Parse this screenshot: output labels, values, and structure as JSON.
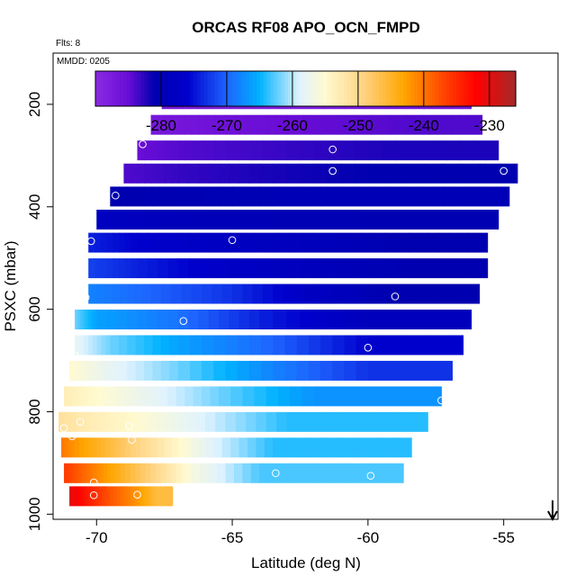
{
  "chart_data": {
    "type": "heatmap",
    "title": "ORCAS RF08 APO_OCN_FMPD",
    "annotation_flts": "Flts: 8",
    "annotation_mmdd": "MMDD: 0205",
    "xlabel": "Latitude (deg N)",
    "ylabel": "PSXC (mbar)",
    "xlim": [
      -71.6,
      -53.0
    ],
    "ylim": [
      1010,
      100
    ],
    "y_reversed": true,
    "grid": false,
    "x_ticks": [
      -70,
      -65,
      -60,
      -55
    ],
    "x_tick_labels": [
      "-70",
      "-65",
      "-60",
      "-55"
    ],
    "y_ticks": [
      200,
      400,
      600,
      800,
      1000
    ],
    "y_tick_labels": [
      "200",
      "400",
      "600",
      "800",
      "1000"
    ],
    "colorbar": {
      "placement": "top-inside",
      "range": [
        -290,
        -226
      ],
      "ticks": [
        -280,
        -270,
        -260,
        -250,
        -240,
        -230
      ],
      "tick_labels": [
        "-280",
        "-270",
        "-260",
        "-250",
        "-240",
        "-230"
      ],
      "colors": [
        "#8a2be2",
        "#6a0dd6",
        "#0000b0",
        "#0000cd",
        "#1e64ff",
        "#00b2ff",
        "#dff2ff",
        "#fffad0",
        "#ffd27f",
        "#ffa500",
        "#ff4500",
        "#ff0000",
        "#a52a2a"
      ],
      "color_stops": [
        -290,
        -285,
        -281,
        -276,
        -270,
        -265,
        -259,
        -255,
        -249,
        -243,
        -237,
        -232,
        -226
      ]
    },
    "rows": [
      {
        "p": 190,
        "x0": -67.6,
        "x1": -56.2,
        "segments": [
          [
            -67.6,
            -287
          ],
          [
            -65.5,
            -288
          ],
          [
            -62,
            -288
          ],
          [
            -59,
            -287
          ]
        ]
      },
      {
        "p": 240,
        "x0": -68.0,
        "x1": -55.8,
        "segments": [
          [
            -68.0,
            -287
          ],
          [
            -66,
            -286
          ],
          [
            -63,
            -285
          ],
          [
            -58,
            -284
          ]
        ]
      },
      {
        "p": 290,
        "x0": -68.5,
        "x1": -55.2,
        "segments": [
          [
            -68.5,
            -285
          ],
          [
            -66.5,
            -284
          ],
          [
            -63,
            -283
          ],
          [
            -59,
            -282
          ]
        ]
      },
      {
        "p": 335,
        "x0": -69.0,
        "x1": -54.5,
        "segments": [
          [
            -69.0,
            -284
          ],
          [
            -67,
            -283
          ],
          [
            -64,
            -282
          ],
          [
            -60,
            -281
          ]
        ]
      },
      {
        "p": 380,
        "x0": -69.5,
        "x1": -54.8,
        "segments": [
          [
            -69.5,
            -281
          ],
          [
            -67,
            -280.5
          ],
          [
            -63,
            -280
          ],
          [
            -58,
            -280
          ]
        ]
      },
      {
        "p": 425,
        "x0": -70.0,
        "x1": -55.2,
        "segments": [
          [
            -70.0,
            -278
          ],
          [
            -68,
            -279
          ],
          [
            -64,
            -280
          ],
          [
            -59,
            -280.5
          ]
        ]
      },
      {
        "p": 470,
        "x0": -70.3,
        "x1": -55.6,
        "segments": [
          [
            -70.3,
            -274
          ],
          [
            -68.5,
            -276
          ],
          [
            -65.5,
            -278
          ],
          [
            -62,
            -279
          ],
          [
            -58.5,
            -281
          ]
        ]
      },
      {
        "p": 520,
        "x0": -70.3,
        "x1": -55.6,
        "segments": [
          [
            -70.3,
            -272
          ],
          [
            -68.5,
            -274
          ],
          [
            -65.5,
            -277
          ],
          [
            -62,
            -279
          ],
          [
            -58,
            -281
          ]
        ]
      },
      {
        "p": 570,
        "x0": -70.3,
        "x1": -55.9,
        "segments": [
          [
            -70.3,
            -268
          ],
          [
            -68,
            -270
          ],
          [
            -65,
            -273
          ],
          [
            -62,
            -278
          ],
          [
            -59,
            -281
          ]
        ]
      },
      {
        "p": 620,
        "x0": -70.8,
        "x1": -56.2,
        "segments": [
          [
            -70.8,
            -262
          ],
          [
            -70,
            -266
          ],
          [
            -67,
            -269
          ],
          [
            -64,
            -274
          ],
          [
            -60,
            -279
          ]
        ]
      },
      {
        "p": 670,
        "x0": -70.8,
        "x1": -56.5,
        "segments": [
          [
            -70.8,
            -258
          ],
          [
            -69.5,
            -262
          ],
          [
            -67,
            -266
          ],
          [
            -63.5,
            -270
          ],
          [
            -60,
            -276
          ]
        ]
      },
      {
        "p": 720,
        "x0": -71.0,
        "x1": -56.9,
        "segments": [
          [
            -71.0,
            -255
          ],
          [
            -69.5,
            -258
          ],
          [
            -67,
            -262
          ],
          [
            -63.5,
            -268
          ],
          [
            -60,
            -273
          ]
        ]
      },
      {
        "p": 770,
        "x0": -71.2,
        "x1": -57.3,
        "segments": [
          [
            -71.2,
            -253
          ],
          [
            -70,
            -255
          ],
          [
            -68,
            -258
          ],
          [
            -65.5,
            -262
          ],
          [
            -62,
            -267
          ]
        ]
      },
      {
        "p": 820,
        "x0": -71.4,
        "x1": -57.8,
        "segments": [
          [
            -71.4,
            -251
          ],
          [
            -70.2,
            -253
          ],
          [
            -68.5,
            -255
          ],
          [
            -66,
            -259
          ],
          [
            -63,
            -264
          ]
        ]
      },
      {
        "p": 870,
        "x0": -71.3,
        "x1": -58.4,
        "segments": [
          [
            -71.3,
            -240
          ],
          [
            -70.8,
            -242
          ],
          [
            -69.5,
            -246
          ],
          [
            -68,
            -251
          ],
          [
            -66,
            -258
          ],
          [
            -63.5,
            -264
          ]
        ]
      },
      {
        "p": 920,
        "x0": -71.2,
        "x1": -58.7,
        "segments": [
          [
            -71.2,
            -236
          ],
          [
            -70.5,
            -239
          ],
          [
            -69.5,
            -243
          ],
          [
            -68,
            -249
          ],
          [
            -66.5,
            -256
          ],
          [
            -64,
            -263
          ]
        ]
      },
      {
        "p": 965,
        "x0": -71.0,
        "x1": -67.2,
        "segments": [
          [
            -71.0,
            -230
          ],
          [
            -70.3,
            -234
          ],
          [
            -69.5,
            -238
          ],
          [
            -68.5,
            -242
          ],
          [
            -67.8,
            -246
          ]
        ]
      }
    ],
    "points": [
      [
        -67.5,
        190
      ],
      [
        -62.8,
        190
      ],
      [
        -59.5,
        188
      ],
      [
        -56.3,
        190
      ],
      [
        -68.3,
        278
      ],
      [
        -61.3,
        288
      ],
      [
        -61.3,
        330
      ],
      [
        -55.0,
        330
      ],
      [
        -54.0,
        332
      ],
      [
        -69.3,
        378
      ],
      [
        -70.2,
        467
      ],
      [
        -65.0,
        465
      ],
      [
        -70.4,
        577
      ],
      [
        -70.5,
        578
      ],
      [
        -59.0,
        575
      ],
      [
        -66.8,
        623
      ],
      [
        -60.0,
        675
      ],
      [
        -70.8,
        690
      ],
      [
        -57.3,
        778
      ],
      [
        -71.2,
        832
      ],
      [
        -70.6,
        820
      ],
      [
        -68.8,
        828
      ],
      [
        -70.9,
        848
      ],
      [
        -68.7,
        855
      ],
      [
        -63.4,
        920
      ],
      [
        -59.9,
        925
      ],
      [
        -70.1,
        938
      ],
      [
        -71.2,
        955
      ],
      [
        -70.1,
        963
      ],
      [
        -68.5,
        962
      ]
    ],
    "arrow": {
      "x": -53.2,
      "direction": "down"
    }
  }
}
